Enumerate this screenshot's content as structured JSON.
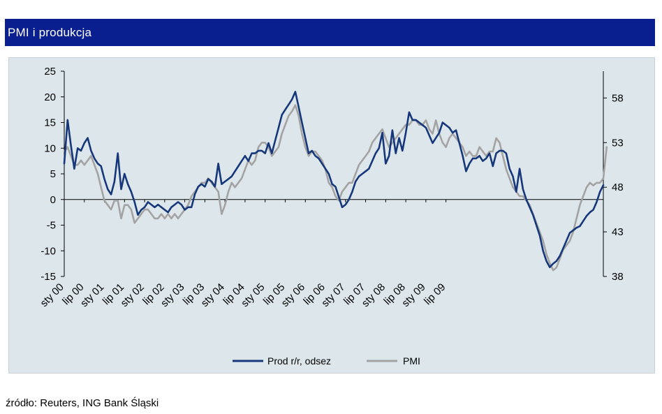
{
  "header": {
    "title": "PMI i produkcja"
  },
  "footer": {
    "source": "źródło: Reuters, ING Bank Śląski"
  },
  "colors": {
    "prod": "#16377a",
    "pmi": "#a3a3a3",
    "header_bg": "#0a1f8f",
    "plot_bg": "#dde6ea"
  },
  "chart_data": {
    "type": "line",
    "title": "PMI i produkcja",
    "x_labels": [
      "sty 00",
      "lip 00",
      "sty 01",
      "lip 01",
      "sty 02",
      "lip 02",
      "sty 03",
      "lip 03",
      "sty 04",
      "lip 04",
      "sty 05",
      "lip 05",
      "sty 06",
      "lip 06",
      "sty 07",
      "lip 07",
      "sty 08",
      "lip 08",
      "sty 09",
      "lip 09"
    ],
    "y_left": {
      "min": -15,
      "max": 25,
      "ticks": [
        25,
        20,
        15,
        10,
        5,
        0,
        -5,
        -10,
        -15
      ]
    },
    "y_right": {
      "min": 38,
      "max": 61,
      "ticks": [
        58,
        53,
        48,
        43,
        38
      ]
    },
    "legend": {
      "position": "bottom"
    },
    "series": [
      {
        "name": "Prod r/r, odsez",
        "axis": "left",
        "color": "#16377a",
        "values": [
          7,
          15.5,
          10.5,
          6,
          10,
          9.5,
          11,
          12,
          9.5,
          8,
          7,
          6.5,
          4,
          2,
          1,
          3.5,
          9,
          2,
          5,
          3,
          1.5,
          -0.5,
          -3,
          -2,
          -1.5,
          -0.5,
          -1,
          -1.5,
          -1,
          -1.5,
          -2,
          -2.5,
          -1.5,
          -1,
          -0.5,
          -1,
          -2,
          -1.5,
          -1.5,
          1,
          2.5,
          3,
          2.5,
          4,
          3.5,
          2.5,
          7,
          3,
          3.5,
          4,
          4.5,
          5.5,
          6.5,
          7.5,
          8.5,
          7.5,
          9,
          9,
          9.5,
          9.5,
          9,
          11,
          9,
          11.5,
          14,
          16.5,
          17.5,
          18.5,
          19.5,
          21,
          18,
          15,
          12,
          9,
          9.5,
          8.5,
          8,
          7,
          6,
          5,
          3,
          2.5,
          0.5,
          -1.5,
          -1,
          0,
          1.5,
          3.5,
          4.5,
          5,
          5.5,
          6,
          7.5,
          9,
          10,
          13,
          7,
          8.5,
          13.5,
          9,
          12,
          9.5,
          13,
          17,
          15.5,
          15.5,
          15,
          14.5,
          14,
          12.5,
          11,
          12,
          13,
          15,
          14.5,
          14,
          13,
          13.5,
          11,
          8.5,
          5.5,
          7,
          8,
          8,
          8.5,
          7.5,
          8,
          9,
          6.5,
          9,
          9.5,
          9.5,
          9,
          6,
          4.5,
          1.5,
          6,
          2,
          0,
          -1.5,
          -3,
          -5,
          -7,
          -10,
          -12,
          -13.2,
          -12.5,
          -12,
          -11,
          -9.5,
          -8,
          -6.5,
          -6,
          -5.5,
          -5.2,
          -4.2,
          -3.2,
          -2.5,
          -2,
          -0.5,
          1.5,
          2.8
        ]
      },
      {
        "name": "PMI",
        "axis": "right",
        "color": "#a3a3a3",
        "values": [
          52,
          52.5,
          51.5,
          50.5,
          50.5,
          51,
          50.5,
          51,
          51.5,
          50.5,
          49.5,
          48,
          46.5,
          46,
          45.5,
          46.5,
          46.5,
          44.5,
          46,
          46,
          45.5,
          44,
          44.5,
          45,
          45.5,
          45.5,
          45,
          44.5,
          44.5,
          45,
          44.5,
          45,
          44.5,
          45,
          44.5,
          45,
          45.5,
          46,
          47,
          47.5,
          48,
          48.5,
          48.5,
          49,
          48.5,
          48,
          47.5,
          45,
          46,
          47.5,
          48.5,
          48,
          48.5,
          49,
          50,
          51,
          50.5,
          51,
          52.5,
          53,
          53,
          52.5,
          51.5,
          52,
          52.5,
          54,
          55,
          56,
          56.5,
          57.2,
          56,
          54,
          52.5,
          51.5,
          52,
          52,
          51.5,
          51,
          50,
          48.5,
          48,
          47,
          46.5,
          47.5,
          48,
          48.5,
          48.5,
          49.5,
          50.5,
          51,
          51.5,
          52,
          53,
          53.5,
          54,
          54.5,
          53.5,
          52.5,
          53,
          53.5,
          54,
          54.5,
          55,
          55,
          55.5,
          55.5,
          55,
          55,
          55.5,
          54.5,
          54,
          55.5,
          54,
          53,
          52.5,
          53.5,
          54,
          53.5,
          53,
          52.5,
          51.5,
          52,
          51.5,
          51.5,
          52.5,
          52,
          51.5,
          52,
          52,
          53.5,
          53,
          51.5,
          50,
          49,
          48,
          47.5,
          47,
          47,
          46.5,
          46,
          45,
          44,
          43,
          42,
          40.5,
          39.5,
          38.7,
          39,
          40,
          41,
          41.5,
          42,
          43,
          44.5,
          46,
          47,
          48,
          48.5,
          48.2,
          48.5,
          48.5,
          49,
          52.5
        ]
      }
    ]
  }
}
